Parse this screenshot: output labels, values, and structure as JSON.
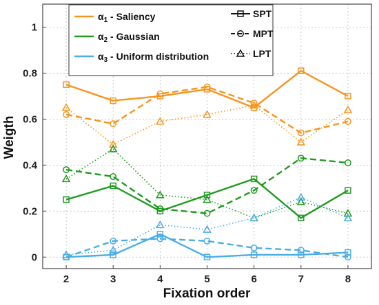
{
  "chart_data": {
    "type": "line",
    "xlabel": "Fixation order",
    "ylabel": "Weigth",
    "x": [
      2,
      3,
      4,
      5,
      6,
      7,
      8
    ],
    "xlim": [
      1.5,
      8.5
    ],
    "ylim": [
      -0.05,
      1.1
    ],
    "yticks": [
      0,
      0.2,
      0.4,
      0.6,
      0.8,
      1
    ],
    "ytick_labels": [
      "0",
      "0.2",
      "0.4",
      "0.6",
      "0.8",
      "1"
    ],
    "xtick_labels": [
      "2",
      "3",
      "4",
      "5",
      "6",
      "7",
      "8"
    ],
    "grid": true,
    "legend_placement": "top",
    "colors": {
      "saliency": "#f7941d",
      "gaussian": "#1f9a1f",
      "uniform": "#49aee6"
    },
    "legend": {
      "alpha_symbol": "α",
      "components": [
        {
          "key": "saliency",
          "index": "1",
          "label": " - Saliency"
        },
        {
          "key": "gaussian",
          "index": "2",
          "label": " - Gaussian"
        },
        {
          "key": "uniform",
          "index": "3",
          "label": " - Uniform distribution"
        }
      ],
      "styles": [
        {
          "key": "SPT",
          "label": "SPT",
          "marker": "square",
          "dash": "solid"
        },
        {
          "key": "MPT",
          "label": "MPT",
          "marker": "circle",
          "dash": "dashed"
        },
        {
          "key": "LPT",
          "label": "LPT",
          "marker": "triangle",
          "dash": "dotted"
        }
      ]
    },
    "series": [
      {
        "component": "saliency",
        "style": "SPT",
        "values": [
          0.75,
          0.68,
          0.7,
          0.73,
          0.65,
          0.81,
          0.7
        ]
      },
      {
        "component": "saliency",
        "style": "MPT",
        "values": [
          0.62,
          0.58,
          0.71,
          0.74,
          0.67,
          0.54,
          0.59
        ]
      },
      {
        "component": "saliency",
        "style": "LPT",
        "values": [
          0.65,
          0.49,
          0.59,
          0.62,
          0.66,
          0.5,
          0.64
        ]
      },
      {
        "component": "gaussian",
        "style": "SPT",
        "values": [
          0.25,
          0.31,
          0.2,
          0.27,
          0.34,
          0.17,
          0.29
        ]
      },
      {
        "component": "gaussian",
        "style": "MPT",
        "values": [
          0.38,
          0.35,
          0.21,
          0.19,
          0.29,
          0.43,
          0.41
        ]
      },
      {
        "component": "gaussian",
        "style": "LPT",
        "values": [
          0.34,
          0.47,
          0.27,
          0.25,
          0.17,
          0.24,
          0.19
        ]
      },
      {
        "component": "uniform",
        "style": "SPT",
        "values": [
          0.0,
          0.01,
          0.1,
          0.0,
          0.01,
          0.01,
          0.02
        ]
      },
      {
        "component": "uniform",
        "style": "MPT",
        "values": [
          0.0,
          0.07,
          0.08,
          0.07,
          0.04,
          0.03,
          0.0
        ]
      },
      {
        "component": "uniform",
        "style": "LPT",
        "values": [
          0.01,
          0.03,
          0.14,
          0.12,
          0.17,
          0.26,
          0.17
        ]
      }
    ]
  }
}
